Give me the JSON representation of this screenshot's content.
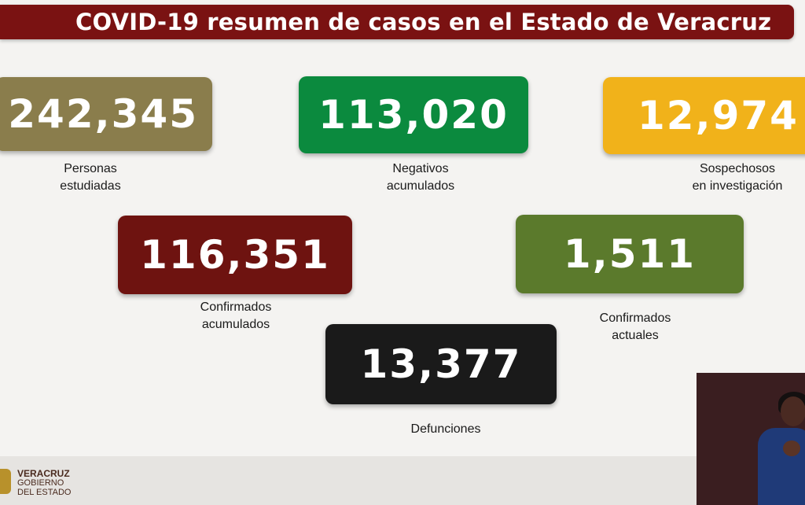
{
  "header": {
    "title": "COVID-19 resumen de casos en el Estado de Veracruz",
    "band_color": "#7a1212"
  },
  "cards": {
    "personas": {
      "value": "242,345",
      "line1": "Personas",
      "line2": "estudiadas",
      "color": "#8a7d4c"
    },
    "negativos": {
      "value": "113,020",
      "line1": "Negativos",
      "line2": "acumulados",
      "color": "#0b8a3e"
    },
    "sospechosos": {
      "value": "12,974",
      "line1": "Sospechosos",
      "line2": "en investigación",
      "color": "#f1b21a"
    },
    "confirmados_acumulados": {
      "value": "116,351",
      "line1": "Confirmados",
      "line2": "acumulados",
      "color": "#6e1310"
    },
    "confirmados_actuales": {
      "value": "1,511",
      "line1": "Confirmados",
      "line2": "actuales",
      "color": "#5b7a2c"
    },
    "defunciones": {
      "value": "13,377",
      "line1": "Defunciones",
      "color": "#1a1a1a"
    }
  },
  "footer": {
    "logo_line1": "VERACRUZ",
    "logo_line2": "GOBIERNO",
    "logo_line3": "DEL ESTADO"
  },
  "interpreter": {
    "icon": "sign-language-interpreter-video"
  }
}
